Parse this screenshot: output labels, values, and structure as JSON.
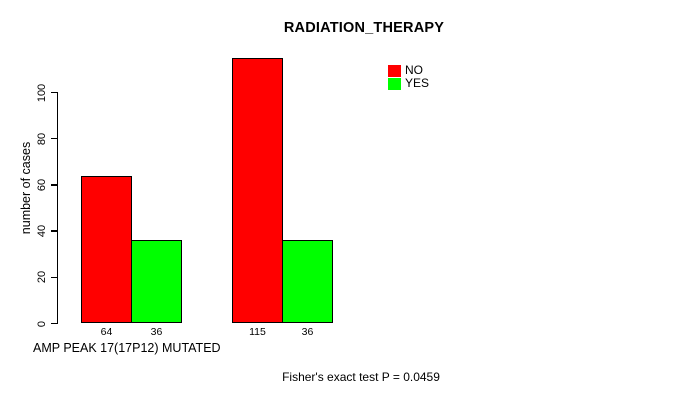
{
  "chart_data": {
    "type": "bar",
    "title": "RADIATION_THERAPY",
    "ylabel": "number of cases",
    "xlabel": "AMP PEAK 17(17P12) MUTATED",
    "footnote": "Fisher's exact test P = 0.0459",
    "series": [
      {
        "name": "NO",
        "color": "#ff0000",
        "values": [
          64,
          115
        ]
      },
      {
        "name": "YES",
        "color": "#00ff00",
        "values": [
          36,
          36
        ]
      }
    ],
    "bar_value_labels": [
      [
        "64",
        "36"
      ],
      [
        "115",
        "36"
      ]
    ],
    "yticks": [
      0,
      20,
      40,
      60,
      80,
      100
    ],
    "ylim": [
      0,
      115
    ],
    "grid": false,
    "legend_position": "top-right",
    "legend_items": [
      {
        "label": "NO",
        "color": "#ff0000"
      },
      {
        "label": "YES",
        "color": "#00ff00"
      }
    ],
    "axis_color": "#000000",
    "bar_border_color": "#000000"
  }
}
